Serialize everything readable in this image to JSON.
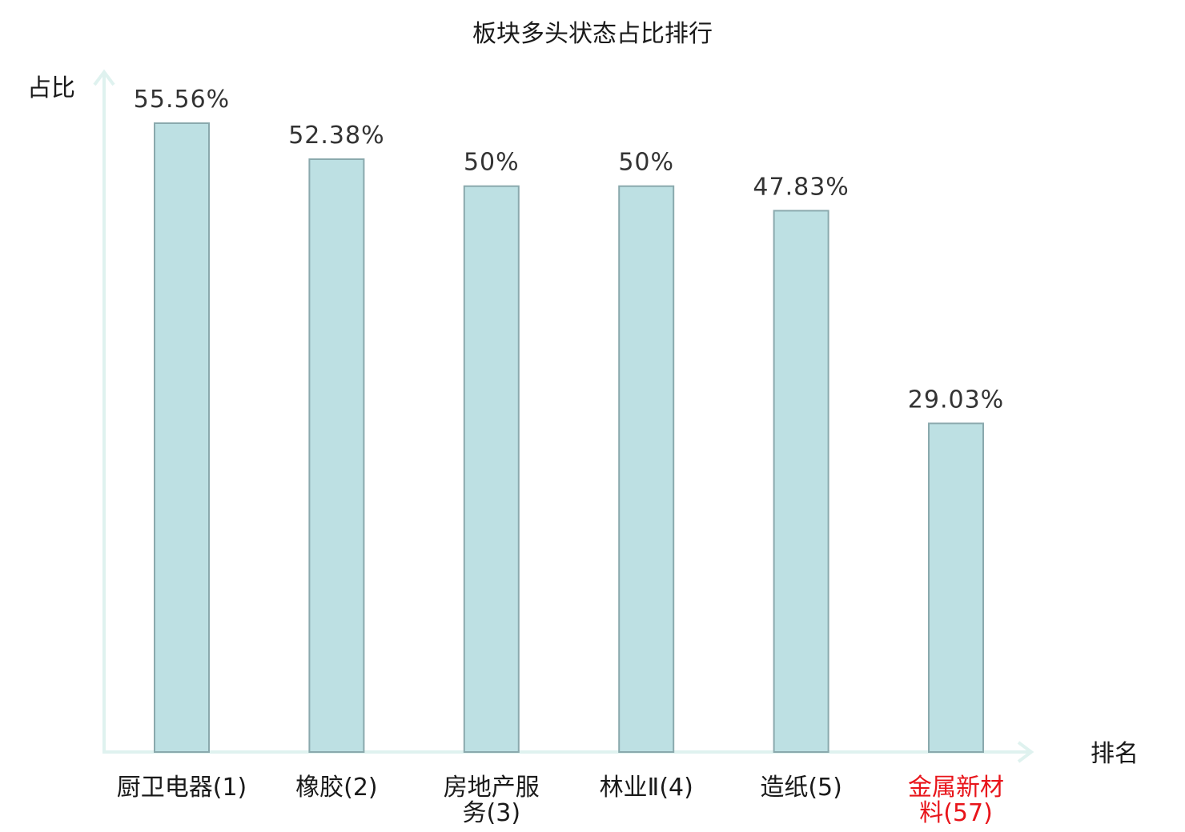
{
  "chart_data": {
    "type": "bar",
    "title": "板块多头状态占比排行",
    "xlabel": "排名",
    "ylabel": "占比",
    "categories": [
      {
        "name_lines": [
          "厨卫电器(1)"
        ],
        "highlight": false
      },
      {
        "name_lines": [
          "橡胶(2)"
        ],
        "highlight": false
      },
      {
        "name_lines": [
          "房地产服",
          "务(3)"
        ],
        "highlight": false
      },
      {
        "name_lines": [
          "林业Ⅱ(4)"
        ],
        "highlight": false
      },
      {
        "name_lines": [
          "造纸(5)"
        ],
        "highlight": false
      },
      {
        "name_lines": [
          "金属新材",
          "料(57)"
        ],
        "highlight": true
      }
    ],
    "values": [
      55.56,
      52.38,
      50,
      50,
      47.83,
      29.03
    ],
    "value_labels": [
      "55.56%",
      "52.38%",
      "50%",
      "50%",
      "47.83%",
      "29.03%"
    ],
    "ylim": [
      0,
      60
    ],
    "grid": false,
    "colors": {
      "bar_fill": "#bde0e3",
      "bar_stroke": "#8aa9ad",
      "axis": "#dff2ef",
      "highlight_label": "#e8141a"
    }
  }
}
